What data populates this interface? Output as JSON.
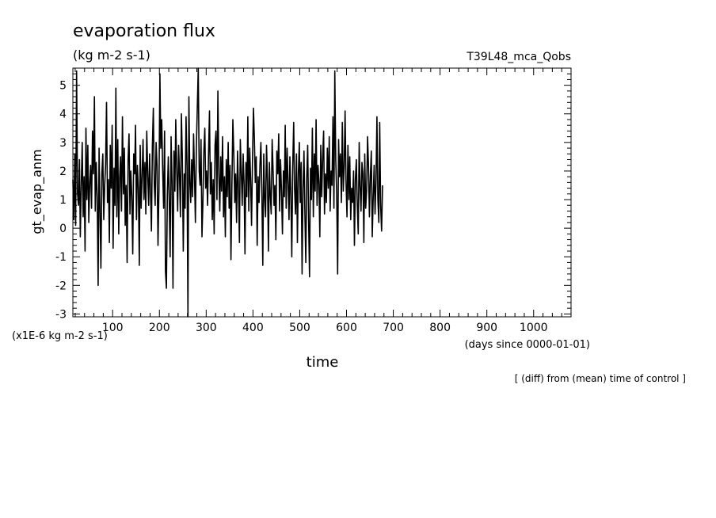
{
  "chart_data": {
    "type": "line",
    "title": "evaporation flux",
    "subtitle": "(kg m-2 s-1)",
    "run_label": "T39L48_mca_Qobs",
    "ylabel": "gt_evap_anm",
    "xlabel": "time",
    "y_unit_note": "(x1E-6 kg m-2 s-1)",
    "x_unit_note": "(days since 0000-01-01)",
    "footnote": "[ (diff) from (mean) time of control ]",
    "xlim": [
      15,
      1080
    ],
    "ylim": [
      -3.1,
      5.6
    ],
    "x_ticks": [
      100,
      200,
      300,
      400,
      500,
      600,
      700,
      800,
      900,
      1000
    ],
    "y_ticks": [
      -3,
      -2,
      -1,
      0,
      1,
      2,
      3,
      4,
      5
    ],
    "grid": false,
    "series": [
      {
        "x_start": 15,
        "x_step": 2,
        "values": [
          1.7,
          0.3,
          2.6,
          0.1,
          5.5,
          1.2,
          0.8,
          2.4,
          -0.3,
          1.5,
          3.0,
          0.4,
          1.8,
          -0.8,
          3.5,
          1.0,
          2.9,
          0.2,
          1.6,
          2.2,
          0.7,
          3.4,
          1.9,
          4.6,
          0.6,
          2.3,
          1.1,
          -2.0,
          2.8,
          0.5,
          -1.4,
          1.9,
          2.6,
          0.3,
          1.5,
          2.2,
          4.4,
          0.9,
          1.7,
          -0.5,
          2.9,
          1.4,
          3.6,
          -0.7,
          2.1,
          0.8,
          4.9,
          0.4,
          3.1,
          -0.2,
          1.8,
          2.5,
          0.6,
          3.9,
          1.2,
          2.8,
          0.1,
          1.5,
          -1.2,
          2.4,
          3.3,
          0.5,
          2.0,
          1.1,
          -0.9,
          2.6,
          1.9,
          3.6,
          0.3,
          2.2,
          1.4,
          -1.3,
          2.9,
          0.7,
          1.8,
          3.1,
          1.0,
          2.3,
          0.5,
          3.4,
          1.9,
          0.8,
          2.6,
          1.3,
          -0.1,
          2.9,
          4.2,
          1.5,
          0.8,
          3.0,
          2.2,
          -0.6,
          1.4,
          5.4,
          2.8,
          3.8,
          2.0,
          0.7,
          3.4,
          -1.5,
          -2.1,
          1.2,
          2.5,
          0.9,
          -1.0,
          3.2,
          1.6,
          -2.1,
          2.7,
          1.3,
          3.8,
          2.1,
          0.6,
          2.9,
          1.8,
          0.4,
          4.0,
          2.5,
          -0.8,
          1.9,
          0.7,
          3.9,
          2.2,
          -3.1,
          4.6,
          1.6,
          0.9,
          2.4,
          1.1,
          3.3,
          1.8,
          0.2,
          2.8,
          4.2,
          5.6,
          2.0,
          1.5,
          3.1,
          -0.3,
          0.9,
          2.7,
          3.5,
          1.4,
          2.0,
          0.8,
          2.6,
          4.1,
          1.2,
          2.3,
          0.3,
          1.7,
          -0.2,
          2.9,
          3.4,
          1.0,
          4.8,
          1.9,
          0.6,
          2.5,
          1.3,
          3.2,
          0.4,
          1.8,
          -0.3,
          2.4,
          1.1,
          3.0,
          0.7,
          2.2,
          -1.1,
          1.5,
          3.8,
          2.6,
          0.9,
          1.9,
          0.2,
          2.7,
          1.4,
          -0.5,
          3.1,
          2.0,
          0.8,
          2.6,
          1.5,
          -0.9,
          2.3,
          1.1,
          3.9,
          0.6,
          2.8,
          1.7,
          0.1,
          2.4,
          4.2,
          3.1,
          1.6,
          2.5,
          -0.6,
          1.8,
          0.9,
          2.2,
          3.0,
          1.3,
          -1.3,
          2.6,
          1.0,
          0.4,
          2.9,
          1.7,
          -0.8,
          2.3,
          1.2,
          0.5,
          3.1,
          2.0,
          0.8,
          1.5,
          -0.4,
          2.7,
          1.9,
          3.3,
          0.6,
          2.4,
          1.3,
          -0.2,
          2.0,
          1.1,
          3.6,
          0.7,
          2.8,
          1.6,
          0.3,
          2.5,
          1.2,
          -1.0,
          2.2,
          3.7,
          1.4,
          0.5,
          2.6,
          -0.5,
          1.9,
          3.0,
          0.9,
          2.3,
          -1.6,
          1.4,
          2.7,
          0.6,
          -1.2,
          1.8,
          2.9,
          0.2,
          -1.7,
          2.1,
          1.0,
          3.5,
          0.4,
          2.6,
          1.3,
          3.8,
          0.8,
          2.2,
          1.6,
          -0.3,
          2.9,
          1.1,
          2.5,
          3.4,
          0.5,
          1.9,
          0.9,
          2.8,
          1.4,
          3.2,
          0.6,
          2.0,
          1.5,
          3.9,
          0.7,
          5.5,
          2.4,
          1.2,
          -1.6,
          3.1,
          1.8,
          2.6,
          0.9,
          3.7,
          1.3,
          2.2,
          4.1,
          1.6,
          0.4,
          2.9,
          1.0,
          2.5,
          0.3,
          1.4,
          0.9,
          2.0,
          -0.6,
          1.7,
          2.4,
          0.8,
          -0.2,
          3.0,
          1.5,
          0.6,
          2.3,
          1.9,
          -0.5,
          2.6,
          0.7,
          1.3,
          3.2,
          2.1,
          0.4,
          1.8,
          2.7,
          -0.3,
          1.1,
          2.2,
          0.5,
          1.6,
          3.9,
          1.0,
          0.2,
          3.7,
          0.8,
          -0.1,
          1.5
        ]
      }
    ]
  }
}
